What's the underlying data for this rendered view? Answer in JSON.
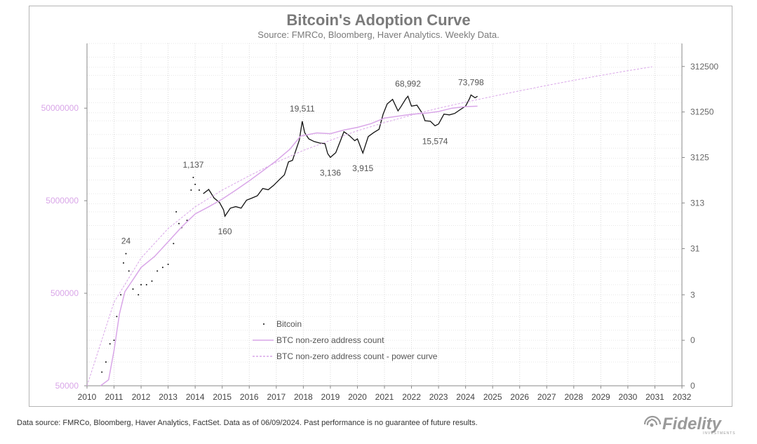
{
  "chart_data": {
    "type": "line",
    "title": "Bitcoin's Adoption Curve",
    "subtitle": "Source: FMRCo, Bloomberg, Haver Analytics. Weekly Data.",
    "footnote": "Data source: FMRCo, Bloomberg, Haver Analytics, FactSet. Data as of 06/09/2024. Past performance is no guarantee of future results.",
    "logo": "Fidelity",
    "logo_tagline": "INVESTMENTS",
    "x_ticks": [
      "2010",
      "2011",
      "2012",
      "2013",
      "2014",
      "2015",
      "2016",
      "2017",
      "2018",
      "2019",
      "2020",
      "2021",
      "2022",
      "2023",
      "2024",
      "2025",
      "2026",
      "2027",
      "2028",
      "2029",
      "2030",
      "2031",
      "2032"
    ],
    "xlim": [
      2010,
      2032
    ],
    "left_axis": {
      "scale": "log",
      "range": [
        50000,
        250000000
      ],
      "ticks": [
        50000,
        500000,
        5000000,
        50000000
      ],
      "tick_labels": [
        "50000",
        "500000",
        "5000000",
        "50000000"
      ],
      "color": "#d9a6e8"
    },
    "right_axis": {
      "scale": "log",
      "range": [
        0.03,
        1000000
      ],
      "ticks": [
        0.03,
        0.3,
        3,
        31,
        313,
        3125,
        31250,
        312500
      ],
      "tick_labels": [
        "0",
        "0",
        "3",
        "31",
        "313",
        "3125",
        "31250",
        "312500"
      ],
      "color": "#666666"
    },
    "grid": true,
    "legend_position": "bottom-center",
    "series": [
      {
        "name": "Bitcoin",
        "axis": "right",
        "color": "#111111",
        "style": "dots",
        "points": [
          [
            2010.55,
            0.06
          ],
          [
            2010.7,
            0.1
          ],
          [
            2010.85,
            0.25
          ],
          [
            2011.0,
            0.3
          ],
          [
            2011.1,
            1
          ],
          [
            2011.25,
            3
          ],
          [
            2011.35,
            15
          ],
          [
            2011.44,
            24
          ],
          [
            2011.55,
            10
          ],
          [
            2011.7,
            4
          ],
          [
            2011.9,
            3
          ],
          [
            2012.0,
            5
          ],
          [
            2012.2,
            5
          ],
          [
            2012.4,
            6
          ],
          [
            2012.6,
            10
          ],
          [
            2012.8,
            12
          ],
          [
            2013.0,
            14
          ],
          [
            2013.2,
            40
          ],
          [
            2013.3,
            200
          ],
          [
            2013.4,
            110
          ],
          [
            2013.5,
            90
          ],
          [
            2013.7,
            130
          ],
          [
            2013.85,
            600
          ],
          [
            2013.93,
            1137
          ],
          [
            2014.0,
            800
          ],
          [
            2014.15,
            600
          ],
          [
            2014.3,
            500
          ],
          [
            2014.5,
            620
          ],
          [
            2014.7,
            400
          ],
          [
            2014.9,
            320
          ],
          [
            2015.05,
            220
          ],
          [
            2015.1,
            160
          ],
          [
            2015.3,
            240
          ],
          [
            2015.5,
            260
          ],
          [
            2015.7,
            240
          ],
          [
            2015.9,
            360
          ],
          [
            2016.1,
            400
          ],
          [
            2016.3,
            450
          ],
          [
            2016.5,
            650
          ],
          [
            2016.7,
            610
          ],
          [
            2016.9,
            760
          ],
          [
            2017.1,
            1000
          ],
          [
            2017.3,
            1300
          ],
          [
            2017.45,
            2500
          ],
          [
            2017.6,
            2700
          ],
          [
            2017.75,
            5000
          ],
          [
            2017.85,
            7500
          ],
          [
            2017.96,
            19511
          ],
          [
            2018.05,
            11000
          ],
          [
            2018.2,
            8000
          ],
          [
            2018.4,
            7000
          ],
          [
            2018.6,
            6500
          ],
          [
            2018.8,
            6300
          ],
          [
            2018.9,
            3800
          ],
          [
            2019.0,
            3136
          ],
          [
            2019.2,
            4000
          ],
          [
            2019.4,
            8000
          ],
          [
            2019.5,
            11500
          ],
          [
            2019.7,
            9500
          ],
          [
            2019.9,
            7300
          ],
          [
            2020.0,
            8000
          ],
          [
            2020.2,
            3915
          ],
          [
            2020.4,
            9000
          ],
          [
            2020.6,
            11000
          ],
          [
            2020.8,
            13000
          ],
          [
            2020.95,
            28000
          ],
          [
            2021.1,
            47000
          ],
          [
            2021.3,
            59000
          ],
          [
            2021.5,
            33000
          ],
          [
            2021.6,
            40000
          ],
          [
            2021.8,
            62000
          ],
          [
            2021.87,
            68992
          ],
          [
            2022.0,
            42000
          ],
          [
            2022.2,
            44000
          ],
          [
            2022.4,
            29000
          ],
          [
            2022.5,
            20000
          ],
          [
            2022.7,
            19500
          ],
          [
            2022.87,
            15574
          ],
          [
            2023.0,
            17000
          ],
          [
            2023.2,
            28000
          ],
          [
            2023.4,
            27000
          ],
          [
            2023.6,
            29000
          ],
          [
            2023.8,
            35000
          ],
          [
            2024.0,
            42000
          ],
          [
            2024.15,
            62000
          ],
          [
            2024.2,
            73798
          ],
          [
            2024.35,
            64000
          ],
          [
            2024.44,
            69000
          ]
        ]
      },
      {
        "name": "BTC non-zero address count",
        "axis": "left",
        "color": "#d9a6e8",
        "style": "solid",
        "points": [
          [
            2010.5,
            50000
          ],
          [
            2010.8,
            58000
          ],
          [
            2011.0,
            120000
          ],
          [
            2011.2,
            300000
          ],
          [
            2011.4,
            520000
          ],
          [
            2011.7,
            700000
          ],
          [
            2012.0,
            950000
          ],
          [
            2012.5,
            1250000
          ],
          [
            2013.0,
            1800000
          ],
          [
            2013.5,
            2600000
          ],
          [
            2014.0,
            3600000
          ],
          [
            2014.5,
            4300000
          ],
          [
            2015.0,
            5200000
          ],
          [
            2015.5,
            6500000
          ],
          [
            2016.0,
            8200000
          ],
          [
            2016.5,
            10500000
          ],
          [
            2017.0,
            13500000
          ],
          [
            2017.5,
            18000000
          ],
          [
            2017.9,
            25000000
          ],
          [
            2018.5,
            27000000
          ],
          [
            2019.0,
            26500000
          ],
          [
            2019.5,
            29000000
          ],
          [
            2020.0,
            31000000
          ],
          [
            2020.5,
            34000000
          ],
          [
            2021.0,
            39000000
          ],
          [
            2021.5,
            41000000
          ],
          [
            2022.0,
            43000000
          ],
          [
            2022.5,
            44000000
          ],
          [
            2023.0,
            46000000
          ],
          [
            2023.5,
            50000000
          ],
          [
            2024.0,
            52000000
          ],
          [
            2024.44,
            52500000
          ]
        ]
      },
      {
        "name": "BTC non-zero address count - power curve",
        "axis": "left",
        "color": "#d9a6e8",
        "style": "dashed",
        "points": [
          [
            2010.0,
            50000
          ],
          [
            2011.0,
            400000
          ],
          [
            2012.0,
            1200000
          ],
          [
            2013.0,
            2500000
          ],
          [
            2014.0,
            4300000
          ],
          [
            2015.0,
            6500000
          ],
          [
            2016.0,
            9300000
          ],
          [
            2017.0,
            13000000
          ],
          [
            2018.0,
            17500000
          ],
          [
            2019.0,
            22500000
          ],
          [
            2020.0,
            28500000
          ],
          [
            2021.0,
            35000000
          ],
          [
            2022.0,
            42000000
          ],
          [
            2023.0,
            50000000
          ],
          [
            2024.0,
            58000000
          ],
          [
            2025.0,
            67000000
          ],
          [
            2026.0,
            77000000
          ],
          [
            2027.0,
            88000000
          ],
          [
            2028.0,
            100000000
          ],
          [
            2029.0,
            113000000
          ],
          [
            2030.0,
            127000000
          ],
          [
            2030.9,
            140000000
          ]
        ]
      }
    ],
    "annotations": [
      {
        "label": "24",
        "x": 2011.44,
        "y": 24
      },
      {
        "label": "1,137",
        "x": 2013.93,
        "y": 1137
      },
      {
        "label": "160",
        "x": 2015.1,
        "y": 160
      },
      {
        "label": "19,511",
        "x": 2017.96,
        "y": 19511
      },
      {
        "label": "3,136",
        "x": 2019.0,
        "y": 3136
      },
      {
        "label": "3,915",
        "x": 2020.2,
        "y": 3915
      },
      {
        "label": "68,992",
        "x": 2021.87,
        "y": 68992
      },
      {
        "label": "15,574",
        "x": 2022.87,
        "y": 15574
      },
      {
        "label": "73,798",
        "x": 2024.2,
        "y": 73798
      }
    ]
  }
}
